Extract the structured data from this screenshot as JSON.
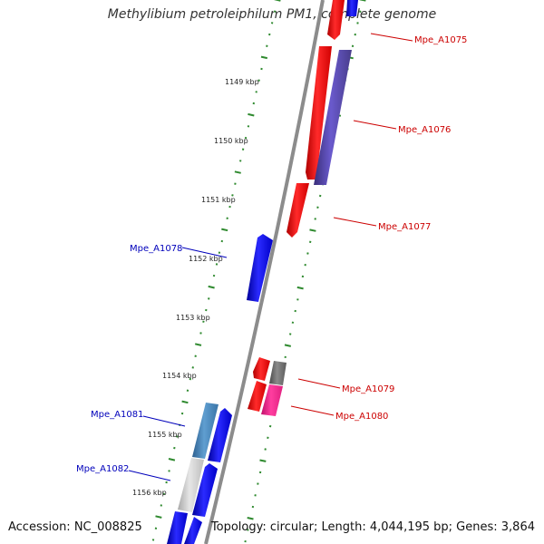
{
  "title": "Methylibium petroleiphilum PM1, complete genome",
  "accession": "Accession: NC_008825",
  "summary": "Topology: circular; Length: 4,044,195 bp; Genes: 3,864",
  "colors": {
    "backbone": "#8c8c8c",
    "tick": "#2f8a2f",
    "forward_label": "#cc0000",
    "reverse_label": "#0000bb",
    "scale_label": "#222222"
  },
  "scale_labels": [
    "1149 kbp",
    "1150 kbp",
    "1151 kbp",
    "1152 kbp",
    "1153 kbp",
    "1154 kbp",
    "1155 kbp",
    "1156 kbp"
  ],
  "gene_labels": [
    {
      "name": "Mpe_A1075",
      "strand": "forward"
    },
    {
      "name": "Mpe_A1076",
      "strand": "forward"
    },
    {
      "name": "Mpe_A1077",
      "strand": "forward"
    },
    {
      "name": "Mpe_A1078",
      "strand": "reverse"
    },
    {
      "name": "Mpe_A1079",
      "strand": "forward"
    },
    {
      "name": "Mpe_A1080",
      "strand": "forward"
    },
    {
      "name": "Mpe_A1081",
      "strand": "reverse"
    },
    {
      "name": "Mpe_A1082",
      "strand": "reverse"
    }
  ]
}
